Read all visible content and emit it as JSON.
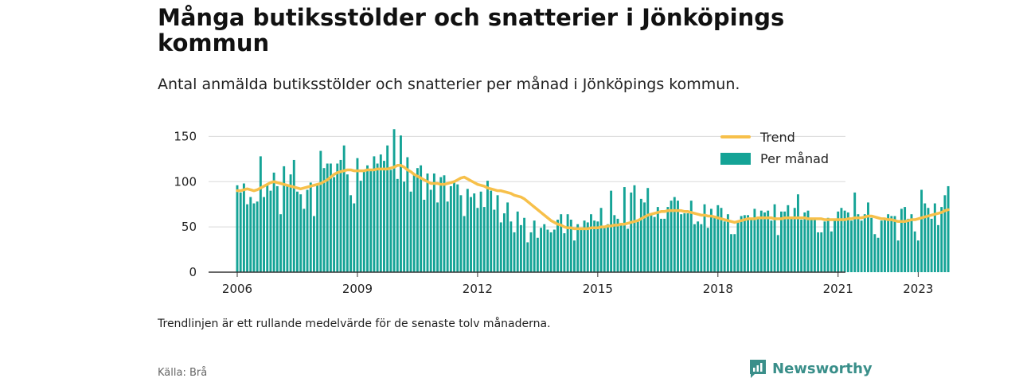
{
  "title": "Många butiksstölder och snatterier i Jönköpings kommun",
  "subtitle": "Antal anmälda butiksstölder och snatterier per månad i Jönköpings kommun.",
  "note": "Trendlinjen är ett rullande medelvärde för de senaste tolv månaderna.",
  "source": "Källa: Brå",
  "brand": "Newsworthy",
  "colors": {
    "bars": "#14a396",
    "trend": "#f7c04a",
    "grid": "#d9d9d9",
    "axis": "#333333",
    "brand": "#3a8f8a"
  },
  "chart_data": {
    "type": "bar",
    "x_start": "2006-01",
    "x_end": "2023-04",
    "frequency": "monthly",
    "xticks": [
      "2006",
      "2009",
      "2012",
      "2015",
      "2018",
      "2021",
      "2023"
    ],
    "yticks": [
      "0",
      "50",
      "100",
      "150"
    ],
    "ylim": [
      0,
      160
    ],
    "grid": true,
    "legend_position": "top-right",
    "series": [
      {
        "name": "Per månad",
        "type": "bar",
        "values": [
          96,
          88,
          98,
          75,
          83,
          76,
          78,
          128,
          83,
          98,
          90,
          110,
          95,
          64,
          117,
          96,
          108,
          124,
          89,
          86,
          70,
          91,
          99,
          62,
          96,
          134,
          115,
          120,
          120,
          105,
          120,
          124,
          140,
          108,
          85,
          76,
          126,
          101,
          113,
          118,
          112,
          128,
          120,
          130,
          123,
          140,
          113,
          158,
          103,
          151,
          100,
          127,
          89,
          109,
          115,
          118,
          80,
          109,
          91,
          109,
          77,
          105,
          107,
          78,
          95,
          100,
          97,
          85,
          62,
          92,
          83,
          87,
          71,
          89,
          72,
          101,
          90,
          69,
          85,
          55,
          65,
          77,
          56,
          44,
          67,
          52,
          60,
          33,
          44,
          57,
          38,
          49,
          53,
          47,
          44,
          47,
          58,
          64,
          43,
          64,
          58,
          35,
          53,
          48,
          57,
          55,
          64,
          57,
          56,
          71,
          49,
          53,
          90,
          63,
          59,
          54,
          94,
          48,
          88,
          96,
          58,
          81,
          77,
          93,
          64,
          61,
          72,
          59,
          59,
          72,
          79,
          83,
          79,
          64,
          65,
          65,
          79,
          53,
          56,
          53,
          75,
          49,
          70,
          61,
          74,
          71,
          56,
          64,
          42,
          42,
          56,
          62,
          63,
          63,
          60,
          70,
          60,
          68,
          66,
          68,
          57,
          75,
          41,
          67,
          67,
          74,
          60,
          71,
          86,
          58,
          66,
          68,
          59,
          58,
          44,
          44,
          56,
          60,
          45,
          57,
          67,
          71,
          68,
          66,
          57,
          88,
          64,
          57,
          64,
          77,
          60,
          42,
          38,
          57,
          59,
          64,
          62,
          62,
          35,
          70,
          72,
          59,
          64,
          45,
          35,
          91,
          76,
          71,
          59,
          76,
          52,
          72,
          85,
          95
        ]
      },
      {
        "name": "Trend",
        "type": "line",
        "values": [
          90,
          90,
          91,
          92,
          91,
          90,
          91,
          93,
          95,
          97,
          99,
          100,
          99,
          98,
          97,
          96,
          95,
          94,
          93,
          92,
          93,
          94,
          95,
          96,
          97,
          98,
          100,
          102,
          105,
          108,
          110,
          111,
          112,
          113,
          113,
          112,
          112,
          112,
          112,
          113,
          113,
          113,
          114,
          114,
          114,
          114,
          115,
          116,
          118,
          118,
          116,
          113,
          111,
          108,
          106,
          104,
          102,
          100,
          98,
          98,
          98,
          97,
          97,
          98,
          99,
          100,
          102,
          104,
          105,
          103,
          101,
          99,
          97,
          96,
          95,
          93,
          92,
          91,
          90,
          90,
          89,
          88,
          87,
          85,
          84,
          83,
          81,
          78,
          75,
          72,
          69,
          66,
          63,
          60,
          57,
          55,
          53,
          52,
          50,
          49,
          49,
          48,
          48,
          48,
          48,
          48,
          49,
          49,
          49,
          50,
          50,
          51,
          51,
          52,
          52,
          53,
          53,
          54,
          55,
          56,
          57,
          59,
          61,
          63,
          64,
          65,
          66,
          67,
          67,
          68,
          68,
          68,
          68,
          68,
          67,
          67,
          66,
          65,
          64,
          63,
          63,
          62,
          62,
          61,
          60,
          59,
          58,
          57,
          56,
          55,
          56,
          57,
          58,
          59,
          59,
          59,
          60,
          60,
          60,
          60,
          60,
          59,
          59,
          59,
          60,
          60,
          60,
          60,
          60,
          60,
          60,
          59,
          59,
          59,
          59,
          59,
          58,
          58,
          58,
          58,
          58,
          58,
          58,
          59,
          59,
          60,
          60,
          60,
          61,
          62,
          62,
          61,
          60,
          59,
          59,
          58,
          58,
          57,
          56,
          56,
          56,
          57,
          58,
          58,
          59,
          60,
          61,
          62,
          63,
          64,
          65,
          66,
          68,
          69
        ]
      }
    ]
  }
}
